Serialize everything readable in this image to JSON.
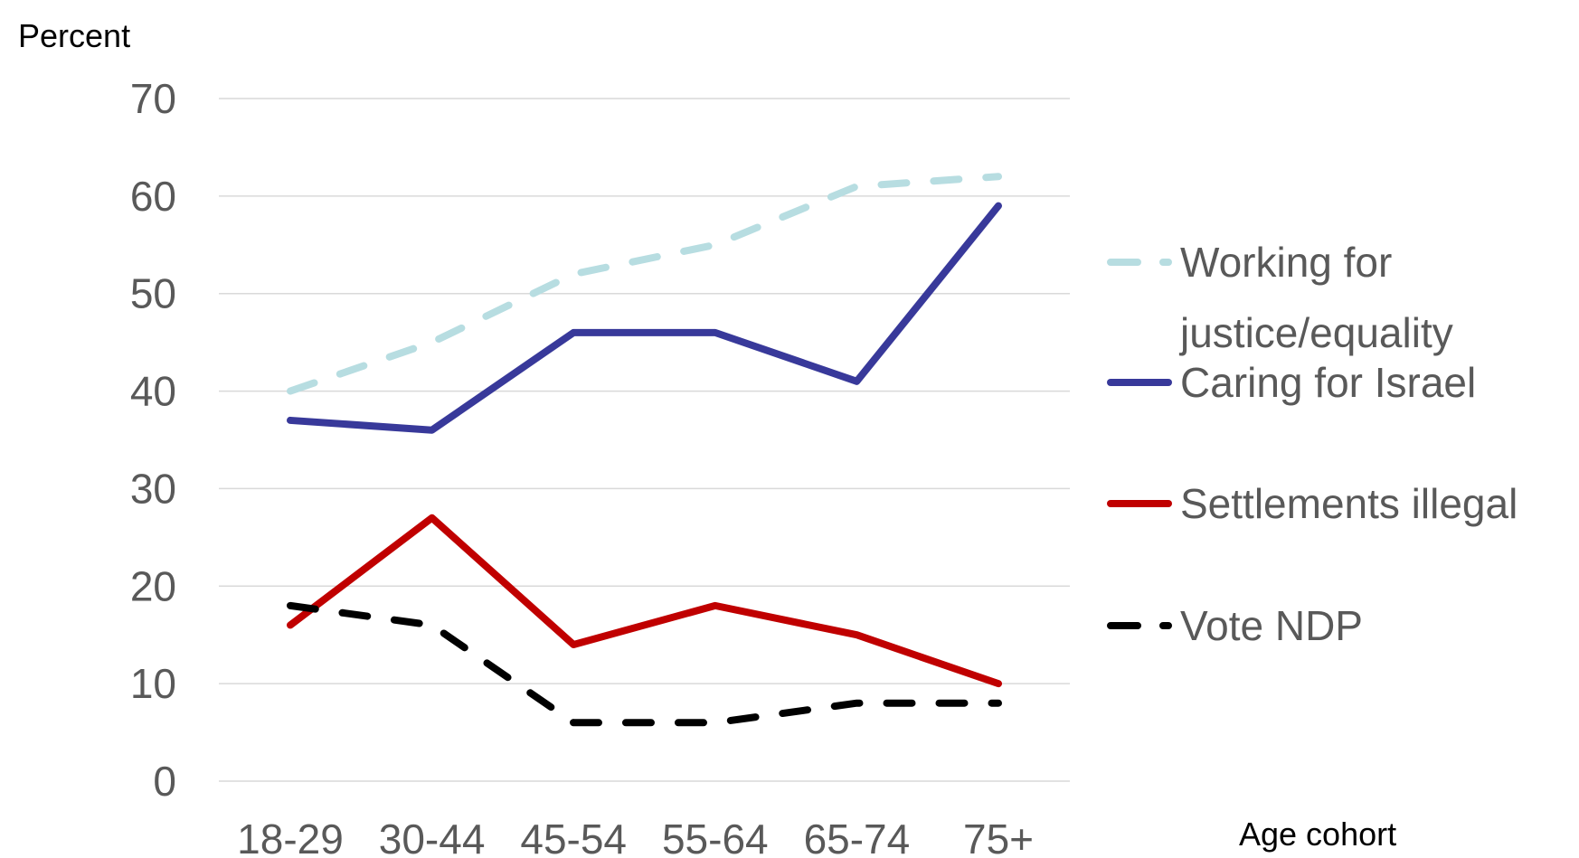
{
  "chart_data": {
    "type": "line",
    "title": "",
    "xlabel": "Age cohort",
    "ylabel": "Percent",
    "categories": [
      "18-29",
      "30-44",
      "45-54",
      "55-64",
      "65-74",
      "75+"
    ],
    "ylim": [
      0,
      70
    ],
    "yticks": [
      0,
      10,
      20,
      30,
      40,
      50,
      60,
      70
    ],
    "grid": true,
    "legend_position": "right",
    "series": [
      {
        "name": "Working for justice/equality",
        "name_lines": [
          "Working for",
          "justice/equality"
        ],
        "values": [
          40,
          45,
          52,
          55,
          61,
          62
        ],
        "color": "#b7dde1",
        "dashed": true
      },
      {
        "name": "Caring for Israel",
        "name_lines": [
          "Caring for Israel"
        ],
        "values": [
          37,
          36,
          46,
          46,
          41,
          59
        ],
        "color": "#38399a",
        "dashed": false
      },
      {
        "name": "Settlements illegal",
        "name_lines": [
          "Settlements illegal"
        ],
        "values": [
          16,
          27,
          14,
          18,
          15,
          10
        ],
        "color": "#c00000",
        "dashed": false
      },
      {
        "name": "Vote NDP",
        "name_lines": [
          "Vote NDP"
        ],
        "values": [
          18,
          16,
          6,
          6,
          8,
          8
        ],
        "color": "#000000",
        "dashed": true
      }
    ]
  }
}
